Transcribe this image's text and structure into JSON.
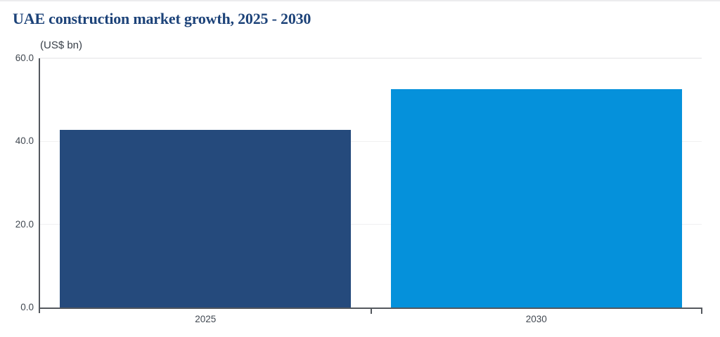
{
  "header": {
    "title": "UAE construction market growth, 2025 - 2030",
    "unit_label": "(US$ bn)"
  },
  "chart_data": {
    "type": "bar",
    "title": "UAE construction market growth, 2025 - 2030",
    "subtitle": "(US$ bn)",
    "categories": [
      "2025",
      "2030"
    ],
    "values": [
      42.7,
      52.6
    ],
    "series_colors": [
      "#254a7c",
      "#0591db"
    ],
    "xlabel": "",
    "ylabel": "US$ bn",
    "ylim": [
      0,
      60
    ],
    "yticks": [
      0,
      20,
      40,
      60
    ],
    "ytick_labels": [
      "0.0",
      "20.0",
      "40.0",
      "60.0"
    ],
    "grid": "horizontal-light",
    "legend": "none",
    "axis_color": "#54585e",
    "gridline_color": "#f0f0f1",
    "title_color": "#1d4379"
  }
}
